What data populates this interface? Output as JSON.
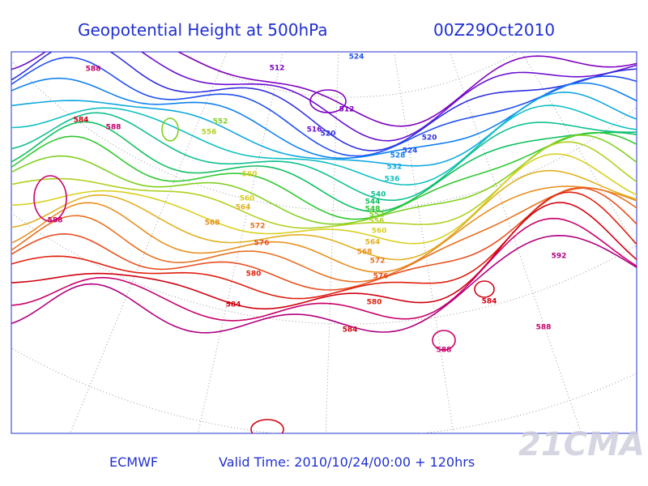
{
  "header": {
    "title": "Geopotential Height at 500hPa",
    "time": "00Z29Oct2010"
  },
  "footer": {
    "source": "ECMWF",
    "valid": "Valid Time: 2010/10/24/00:00 + 120hrs"
  },
  "watermark": "21CMA",
  "contours": [
    {
      "level": 512,
      "color": "#8000c0"
    },
    {
      "level": 516,
      "color": "#6a10d0"
    },
    {
      "level": 520,
      "color": "#3030e0"
    },
    {
      "level": 524,
      "color": "#2050f0"
    },
    {
      "level": 528,
      "color": "#1080f0"
    },
    {
      "level": 532,
      "color": "#10a8e0"
    },
    {
      "level": 536,
      "color": "#10c0c0"
    },
    {
      "level": 540,
      "color": "#10c090"
    },
    {
      "level": 544,
      "color": "#10c060"
    },
    {
      "level": 548,
      "color": "#30c830"
    },
    {
      "level": 552,
      "color": "#80d020"
    },
    {
      "level": 556,
      "color": "#b0d020"
    },
    {
      "level": 560,
      "color": "#d8d020"
    },
    {
      "level": 564,
      "color": "#e0b020"
    },
    {
      "level": 568,
      "color": "#e89020"
    },
    {
      "level": 572,
      "color": "#e87020"
    },
    {
      "level": 576,
      "color": "#e85020"
    },
    {
      "level": 580,
      "color": "#e02010"
    },
    {
      "level": 584,
      "color": "#d00010"
    },
    {
      "level": 588,
      "color": "#c8006a"
    },
    {
      "level": 592,
      "color": "#b00080"
    }
  ],
  "labels": [
    588,
    584,
    588,
    556,
    552,
    560,
    560,
    564,
    568,
    572,
    576,
    580,
    584,
    584,
    580,
    576,
    572,
    568,
    564,
    560,
    556,
    552,
    548,
    544,
    540,
    536,
    532,
    528,
    524,
    520,
    520,
    516,
    512,
    512,
    524,
    588,
    592,
    584,
    588,
    588
  ]
}
